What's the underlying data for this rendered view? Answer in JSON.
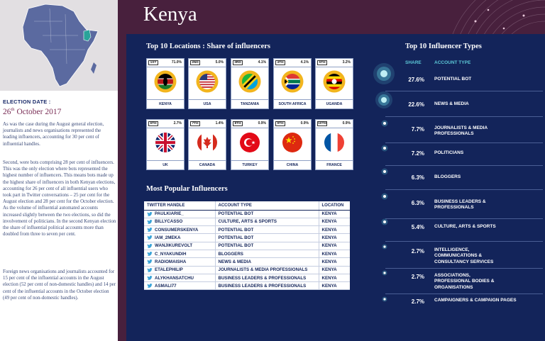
{
  "country": "Kenya",
  "election": {
    "label": "ELECTION DATE :",
    "day": "26",
    "ordinal": "th",
    "month_year": " October 2017"
  },
  "paragraphs": [
    "As was the case during the August general election, journalists and news organisations represented the leading influencers, accounting for 30 per cent of influential handles.",
    "Second, were bots comprising 28 per cent of influencers. This was the only election where bots represented the highest number of influencers. This means bots made up the highest share of influencers in both Kenyan elections, accounting for 26 per cent of all influential users who took part in Twitter conversations – 25 per cent for the August election and 28 per cent for the October election. As the volume of influential automated accounts increased slightly between the two elections, so did the involvement of politicians. In the second Kenyan election the share of influential political accounts more than doubled from three to seven per cent.",
    "Foreign news organisations and journalists accounted for 15 per cent of the influential accounts in the August election (52 per cent of non-domestic handles) and 14 per cent of the influential accounts in the October election (49 per cent of non-domestic handles)."
  ],
  "locations_title": "Top 10 Locations : Share of influencers",
  "locations": [
    {
      "rank": "1ST",
      "pct": "71.0%",
      "name": "KENYA",
      "flag": "kenya-flag-icon"
    },
    {
      "rank": "2ND",
      "pct": "5.0%",
      "name": "USA",
      "flag": "usa-flag-icon"
    },
    {
      "rank": "3RD",
      "pct": "4.1%",
      "name": "TANZANIA",
      "flag": "tanzania-flag-icon"
    },
    {
      "rank": "4TH",
      "pct": "4.1%",
      "name": "SOUTH AFRICA",
      "flag": "south-africa-flag-icon"
    },
    {
      "rank": "5TH",
      "pct": "3.2%",
      "name": "UGANDA",
      "flag": "uganda-flag-icon"
    },
    {
      "rank": "6TH",
      "pct": "2.7%",
      "name": "UK",
      "flag": "uk-flag-icon"
    },
    {
      "rank": "7TH",
      "pct": "1.4%",
      "name": "CANADA",
      "flag": "canada-flag-icon"
    },
    {
      "rank": "8TH",
      "pct": "0.9%",
      "name": "TURKEY",
      "flag": "turkey-flag-icon"
    },
    {
      "rank": "9TH",
      "pct": "0.9%",
      "name": "CHINA",
      "flag": "china-flag-icon"
    },
    {
      "rank": "10TH",
      "pct": "0.9%",
      "name": "FRANCE",
      "flag": "france-flag-icon"
    }
  ],
  "influencers_title": "Most Popular Influencers",
  "influencers_headers": [
    "TWITTER HANDLE",
    "ACCOUNT TYPE",
    "LOCATION"
  ],
  "influencers": [
    {
      "handle": "PAULKIARIE_",
      "type": "POTENTIAL BOT",
      "location": "KENYA"
    },
    {
      "handle": "BILLYCASSO",
      "type": "CULTURE, ARTS & SPORTS",
      "location": "KENYA"
    },
    {
      "handle": "CONSUMERSKENYA",
      "type": "POTENTIAL BOT",
      "location": "KENYA"
    },
    {
      "handle": "IAM_2MEKA",
      "type": "POTENTIAL BOT",
      "location": "KENYA"
    },
    {
      "handle": "WANJIKUREVOLT",
      "type": "POTENTIAL BOT",
      "location": "KENYA"
    },
    {
      "handle": "C_NYAKUNDIH",
      "type": "BLOGGERS",
      "location": "KENYA"
    },
    {
      "handle": "RADIOMAISHA",
      "type": "NEWS & MEDIA",
      "location": "KENYA"
    },
    {
      "handle": "ETALEPHILIP",
      "type": "JOURNALISTS & MEDIA PROFESSIONALS",
      "location": "KENYA"
    },
    {
      "handle": "ALYKHANSATCHU",
      "type": "BUSINESS LEADERS & PROFESSIONALS",
      "location": "KENYA"
    },
    {
      "handle": "ASMALI77",
      "type": "BUSINESS LEADERS & PROFESSIONALS",
      "location": "KENYA"
    }
  ],
  "types_title": "Top 10 Influencer Types",
  "types_headers": {
    "share": "SHARE",
    "type": "ACCOUNT TYPE"
  },
  "types": [
    {
      "share": "27.6%",
      "name": "POTENTIAL BOT"
    },
    {
      "share": "22.6%",
      "name": "NEWS & MEDIA"
    },
    {
      "share": "7.7%",
      "name": "JOURNALISTS & MEDIA PROFESSIONALS"
    },
    {
      "share": "7.2%",
      "name": "POLITICIANS"
    },
    {
      "share": "6.3%",
      "name": "BLOGGERS"
    },
    {
      "share": "6.3%",
      "name": "BUSINESS LEADERS & PROFESSIONALS"
    },
    {
      "share": "5.4%",
      "name": "CULTURE, ARTS & SPORTS"
    },
    {
      "share": "2.7%",
      "name": "INTELLIGENCE, COMMUNICATIONS & CONSULTANCY SERVICES"
    },
    {
      "share": "2.7%",
      "name": "ASSOCIATIONS, PROFESSIONAL BODIES & ORGANISATIONS"
    },
    {
      "share": "2.7%",
      "name": "CAMPAIGNERS & CAMPAIGN PAGES"
    }
  ],
  "colors": {
    "navy": "#13245a",
    "plum": "#48203d",
    "accent": "#5cc7d6",
    "map_highlight": "#2aa39a"
  }
}
